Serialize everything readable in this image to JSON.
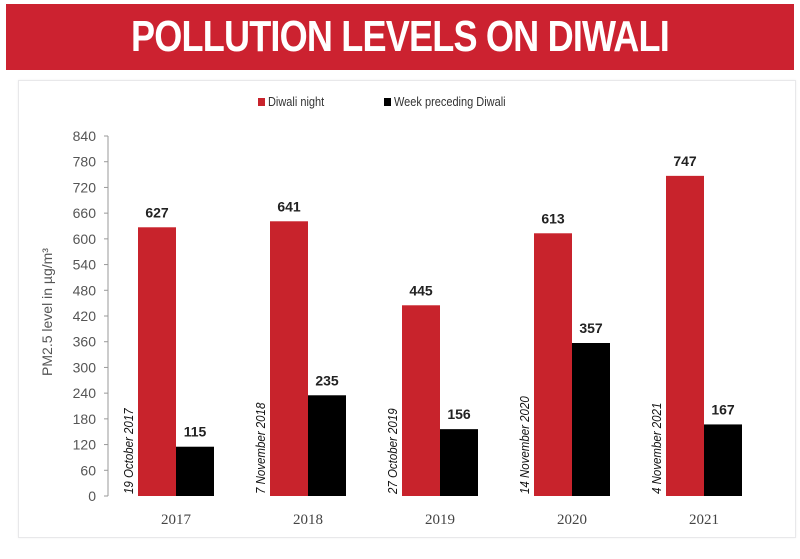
{
  "header": {
    "title": "POLLUTION LEVELS ON DIWALI"
  },
  "colors": {
    "banner": "#cc2230",
    "diwali": "#c8232c",
    "week": "#000000"
  },
  "chart_data": {
    "type": "bar",
    "title": "POLLUTION LEVELS ON DIWALI",
    "xlabel": "",
    "ylabel": "PM2.5 level in µg/m³",
    "ylim": [
      0,
      840
    ],
    "yticks": [
      0,
      60,
      120,
      180,
      240,
      300,
      360,
      420,
      480,
      540,
      600,
      660,
      720,
      780,
      840
    ],
    "grid": false,
    "legend_position": "top-center",
    "categories": [
      "2017",
      "2018",
      "2019",
      "2020",
      "2021"
    ],
    "date_labels": [
      "19 October 2017",
      "7 November 2018",
      "27 October 2019",
      "14 November 2020",
      "4 November 2021"
    ],
    "series": [
      {
        "name": "Diwali night",
        "color": "#c8232c",
        "values": [
          627,
          641,
          445,
          613,
          747
        ]
      },
      {
        "name": "Week preceding Diwali",
        "color": "#000000",
        "values": [
          115,
          235,
          156,
          357,
          167
        ]
      }
    ]
  }
}
